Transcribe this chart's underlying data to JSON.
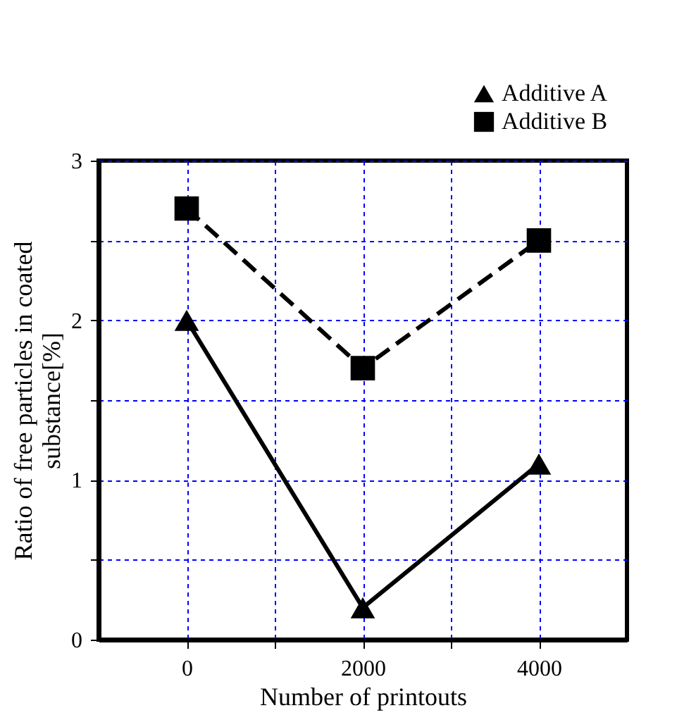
{
  "chart_data": {
    "type": "line",
    "xlabel": "Number of printouts",
    "ylabel": "Ratio of free particles in coated substance[%]",
    "x": [
      0,
      2000,
      4000
    ],
    "series": [
      {
        "name": "Additive A",
        "color": "#000000",
        "values": [
          2.0,
          0.2,
          1.1
        ],
        "marker": "triangle",
        "line_style": "solid"
      },
      {
        "name": "Additive B",
        "color": "#000000",
        "values": [
          2.7,
          1.7,
          2.5
        ],
        "marker": "square",
        "line_style": "dashed"
      }
    ],
    "xlim": [
      -1000,
      5000
    ],
    "xticks": [
      0,
      {
        "value": 1000,
        "label": null
      },
      2000,
      {
        "value": 3000,
        "label": null
      },
      4000
    ],
    "ylim": [
      0,
      3
    ],
    "yticks": [
      0,
      {
        "value": 0.5,
        "label": null
      },
      1,
      {
        "value": 1.5,
        "label": null
      },
      2,
      {
        "value": 2.5,
        "label": null
      },
      3
    ],
    "grid": true,
    "legend": "top right"
  }
}
